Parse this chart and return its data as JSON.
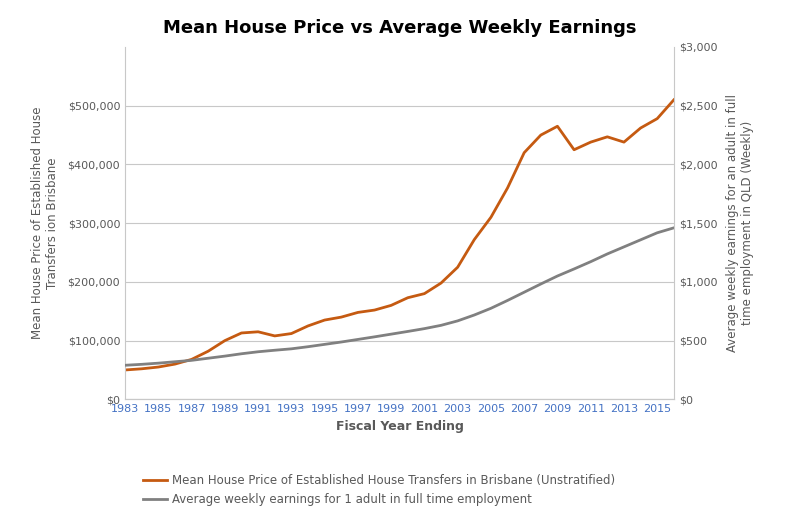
{
  "title": "Mean House Price vs Average Weekly Earnings",
  "xlabel": "Fiscal Year Ending",
  "ylabel_left": "Mean House Price of Established House\nTransfers ion Brisbane",
  "ylabel_right": "Average weekly earnings for an adult in full\ntime employment in QLD (Weekly)",
  "years": [
    1983,
    1984,
    1985,
    1986,
    1987,
    1988,
    1989,
    1990,
    1991,
    1992,
    1993,
    1994,
    1995,
    1996,
    1997,
    1998,
    1999,
    2000,
    2001,
    2002,
    2003,
    2004,
    2005,
    2006,
    2007,
    2008,
    2009,
    2010,
    2011,
    2012,
    2013,
    2014,
    2015,
    2016
  ],
  "house_prices": [
    50000,
    52000,
    55000,
    60000,
    68000,
    82000,
    100000,
    113000,
    115000,
    108000,
    112000,
    125000,
    135000,
    140000,
    148000,
    152000,
    160000,
    173000,
    180000,
    198000,
    225000,
    272000,
    310000,
    360000,
    420000,
    450000,
    465000,
    425000,
    438000,
    447000,
    438000,
    462000,
    478000,
    510000
  ],
  "weekly_earnings": [
    290,
    298,
    308,
    320,
    332,
    350,
    368,
    388,
    405,
    418,
    430,
    448,
    468,
    488,
    510,
    532,
    555,
    578,
    602,
    630,
    668,
    718,
    775,
    842,
    912,
    982,
    1050,
    1110,
    1172,
    1238,
    1298,
    1358,
    1418,
    1460
  ],
  "house_color": "#C55A11",
  "earnings_color": "#808080",
  "house_label": "Mean House Price of Established House Transfers in Brisbane (Unstratified)",
  "earnings_label": "Average weekly earnings for 1 adult in full time employment",
  "ylim_left": [
    0,
    600000
  ],
  "ylim_right": [
    0,
    3000
  ],
  "yticks_left": [
    0,
    100000,
    200000,
    300000,
    400000,
    500000
  ],
  "yticks_right": [
    0,
    500,
    1000,
    1500,
    2000,
    2500,
    3000
  ],
  "xtick_years_start": 1983,
  "xtick_years_end": 2016,
  "xtick_step": 2,
  "background_color": "#ffffff",
  "grid_color": "#c8c8c8",
  "title_fontsize": 13,
  "axis_label_fontsize": 8.5,
  "tick_label_fontsize": 8,
  "legend_fontsize": 8.5,
  "tick_color": "#4472C4",
  "label_color": "#595959",
  "xlabel_fontsize": 9,
  "xlabel_fontweight": "bold"
}
